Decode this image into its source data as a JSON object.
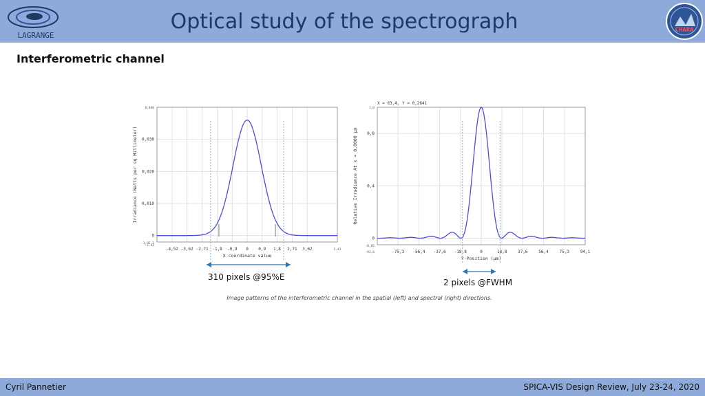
{
  "header": {
    "title": "Optical study of the spectrograph",
    "logo_left_text": "LAGRANGE",
    "logo_right_text": "CHARA"
  },
  "section_title": "Interferometric channel",
  "colors": {
    "band": "#8eaadb",
    "curve": "#4c4ce0",
    "annotation_arrow": "#2e75b6"
  },
  "annotations": {
    "left": "310 pixels @95%E",
    "right": "2 pixels @FWHM"
  },
  "caption": "Image patterns of the interferometric channel in the spatial (left) and spectral (right) directions.",
  "footer": {
    "author": "Cyril Pannetier",
    "event": "SPICA-VIS Design Review, July 23-24, 2020"
  },
  "chart_data": [
    {
      "type": "line",
      "xlabel": "X coordinate value",
      "ylabel": "Irradiance (Watts per sq Millimeter)",
      "xlim": [
        -5.43,
        5.43
      ],
      "ylim": [
        -0.002,
        0.04
      ],
      "top_left_label": "0,040",
      "bottom_left_label": "-1,9E-3",
      "x_edge_labels": [
        "-5,43",
        "5,43"
      ],
      "x_ticks": [
        -4.52,
        -3.62,
        -2.71,
        -1.8,
        -0.9,
        0,
        0.9,
        1.8,
        2.71,
        3.62
      ],
      "x_tick_labels": [
        "-4,52",
        "-3,62",
        "-2,71",
        "-1,8",
        "-0,9",
        "0",
        "0,9",
        "1,8",
        "2,71",
        "3,62"
      ],
      "y_ticks": [
        0,
        0.01,
        0.02,
        0.03
      ],
      "y_tick_labels": [
        "0",
        "0,010",
        "0,020",
        "0,030"
      ],
      "peak": 0.036,
      "sigma": 0.85,
      "markers_x": [
        -2.2,
        2.2
      ],
      "marker_ticks_x": [
        -1.7,
        1.7
      ],
      "grid": true
    },
    {
      "type": "line",
      "header": "X = 63,4, Y = 0,2641",
      "xlabel": "Y-Position (µm)",
      "ylabel": "Relative Irradiance At x = 0,0000 µm",
      "xlim": [
        -94.1,
        94.1
      ],
      "ylim": [
        -0.05,
        1.0
      ],
      "top_left_label": "1,0",
      "bottom_left_label": "-0,05",
      "left_edge_label": "-93,6",
      "x_ticks": [
        -75.3,
        -56.4,
        -37.6,
        -18.8,
        0,
        18.8,
        37.6,
        56.4,
        75.3,
        94.1
      ],
      "x_tick_labels": [
        "-75,3",
        "-56,4",
        "-37,6",
        "-18,8",
        "0",
        "18,8",
        "37,6",
        "56,4",
        "75,3",
        "94,1"
      ],
      "y_ticks": [
        0,
        0.4,
        0.8
      ],
      "y_tick_labels": [
        "0",
        "0,4",
        "0,8"
      ],
      "peak": 1.0,
      "sigma": 11.5,
      "markers_x": [
        -17,
        17
      ],
      "grid": true
    }
  ]
}
